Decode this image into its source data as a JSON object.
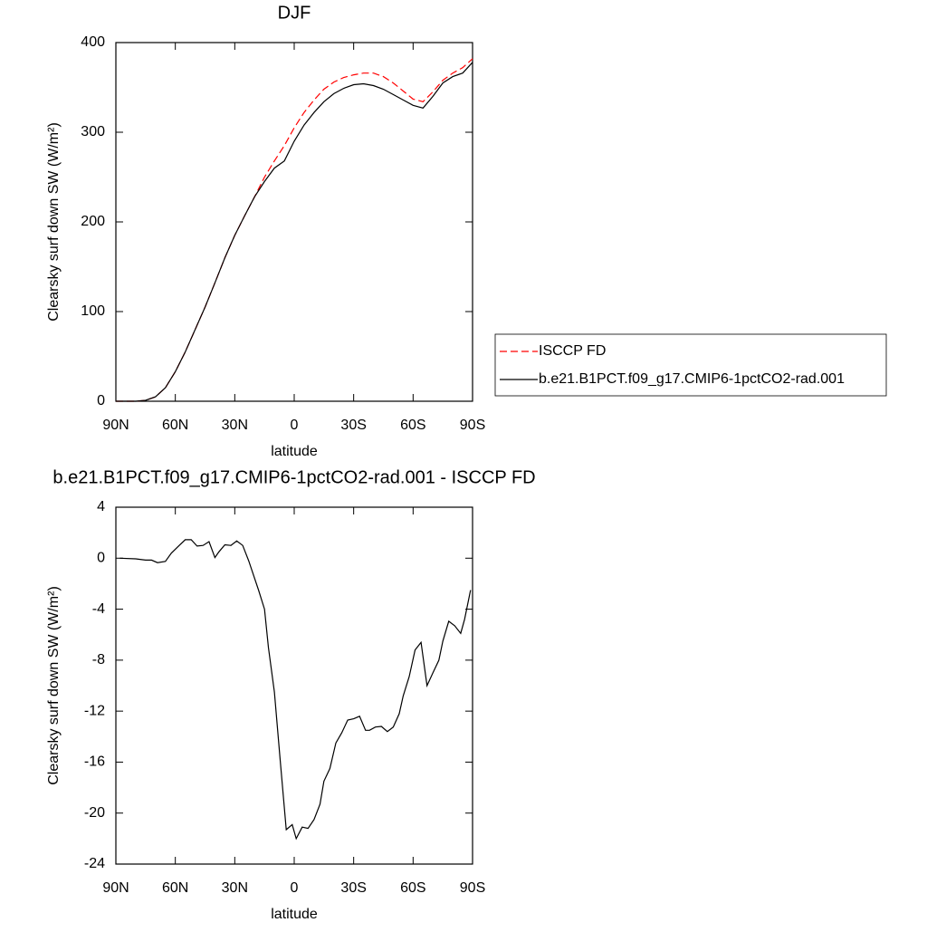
{
  "chart_data": [
    {
      "type": "line",
      "title": "DJF",
      "xlabel": "latitude",
      "ylabel": "Clearsky surf down SW (W/m²)",
      "x": [
        90,
        80,
        75,
        70,
        65,
        60,
        55,
        50,
        45,
        40,
        35,
        30,
        25,
        20,
        15,
        10,
        5,
        0,
        -5,
        -10,
        -15,
        -20,
        -25,
        -30,
        -35,
        -40,
        -45,
        -50,
        -55,
        -60,
        -65,
        -70,
        -75,
        -80,
        -85,
        -90
      ],
      "series": [
        {
          "name": "ISCCP FD",
          "color": "#ff0000",
          "dash": true,
          "values": [
            0,
            0,
            1,
            5,
            15,
            33,
            55,
            80,
            105,
            132,
            160,
            185,
            207,
            228,
            250,
            268,
            285,
            305,
            322,
            336,
            348,
            356,
            361,
            364,
            366,
            366,
            362,
            355,
            346,
            337,
            334,
            345,
            358,
            366,
            372,
            382
          ]
        },
        {
          "name": "b.e21.B1PCT.f09_g17.CMIP6-1pctCO2-rad.001",
          "color": "#000000",
          "dash": false,
          "values": [
            0,
            0,
            1,
            5,
            15,
            33,
            55,
            80,
            105,
            132,
            160,
            185,
            207,
            228,
            245,
            260,
            268,
            290,
            308,
            322,
            334,
            343,
            349,
            353,
            354,
            352,
            348,
            342,
            336,
            330,
            327,
            340,
            355,
            362,
            366,
            378
          ]
        }
      ],
      "xlim": [
        90,
        -90
      ],
      "xticks": [
        {
          "value": 90,
          "label": "90N"
        },
        {
          "value": 60,
          "label": "60N"
        },
        {
          "value": 30,
          "label": "30N"
        },
        0,
        {
          "value": -30,
          "label": "30S"
        },
        {
          "value": -60,
          "label": "60S"
        },
        {
          "value": -90,
          "label": "90S"
        }
      ],
      "ylim": [
        0,
        400
      ],
      "yticks": [
        0,
        100,
        200,
        300,
        400
      ],
      "legend": "right"
    },
    {
      "type": "line",
      "title": "b.e21.B1PCT.f09_g17.CMIP6-1pctCO2-rad.001 - ISCCP FD",
      "xlabel": "latitude",
      "ylabel": "Clearsky surf down SW (W/m²)",
      "x": [
        88,
        80,
        75,
        72,
        69,
        65,
        62,
        58,
        55,
        52,
        49,
        46,
        43,
        40,
        38,
        35,
        32,
        29,
        26,
        23,
        18,
        15,
        13,
        10,
        7,
        4,
        1,
        -1,
        -4,
        -7,
        -10,
        -13,
        -15,
        -18,
        -21,
        -24,
        -27,
        -30,
        -33,
        -36,
        -38,
        -41,
        -44,
        -47,
        -50,
        -53,
        -55,
        -58,
        -61,
        -64,
        -67,
        -70,
        -73,
        -75,
        -78,
        -81,
        -84,
        -86,
        -89
      ],
      "values": [
        0,
        -0.05,
        -0.15,
        -0.15,
        -0.35,
        -0.25,
        0.4,
        1.0,
        1.45,
        1.45,
        0.95,
        1.0,
        1.3,
        0.05,
        0.5,
        1.05,
        1.0,
        1.35,
        1.0,
        -0.2,
        -2.5,
        -4,
        -7,
        -10.5,
        -16,
        -21.3,
        -20.9,
        -22,
        -21.1,
        -21.2,
        -20.5,
        -19.3,
        -17.5,
        -16.5,
        -14.5,
        -13.7,
        -12.7,
        -12.6,
        -12.4,
        -13.5,
        -13.5,
        -13.25,
        -13.2,
        -13.6,
        -13.25,
        -12.2,
        -10.8,
        -9.3,
        -7.2,
        -6.6,
        -10,
        -9,
        -8,
        -6.5,
        -4.95,
        -5.3,
        -5.9,
        -4.8,
        -2.5
      ],
      "color": "#000000",
      "xlim": [
        90,
        -90
      ],
      "xticks": [
        {
          "value": 90,
          "label": "90N"
        },
        {
          "value": 60,
          "label": "60N"
        },
        {
          "value": 30,
          "label": "30N"
        },
        0,
        {
          "value": -30,
          "label": "30S"
        },
        {
          "value": -60,
          "label": "60S"
        },
        {
          "value": -90,
          "label": "90S"
        }
      ],
      "ylim": [
        -24,
        4
      ],
      "yticks": [
        4,
        0,
        -4,
        -8,
        -12,
        -16,
        -20,
        -24
      ]
    }
  ]
}
